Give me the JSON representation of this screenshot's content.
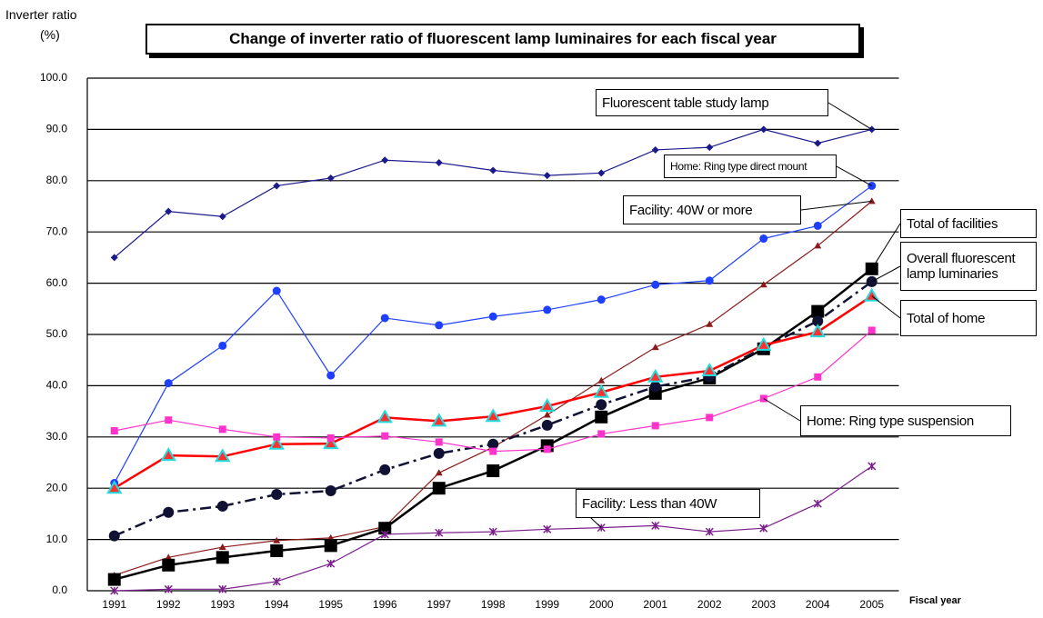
{
  "chart_data": {
    "type": "line",
    "title": "Change of inverter ratio of fluorescent lamp luminaires for each fiscal year",
    "ylabel": [
      "Inverter ratio",
      "(%)"
    ],
    "xlabel": "Fiscal year",
    "categories": [
      "1991",
      "1992",
      "1993",
      "1994",
      "1995",
      "1996",
      "1997",
      "1998",
      "1999",
      "2000",
      "2001",
      "2002",
      "2003",
      "2004",
      "2005"
    ],
    "ylim": [
      0,
      100
    ],
    "yticks": [
      {
        "value": 0,
        "label": "0.0"
      },
      {
        "value": 10,
        "label": "10.0"
      },
      {
        "value": 20,
        "label": "20.0"
      },
      {
        "value": 30,
        "label": "30.0"
      },
      {
        "value": 40,
        "label": "40.0"
      },
      {
        "value": 50,
        "label": "50.0"
      },
      {
        "value": 60,
        "label": "60.0"
      },
      {
        "value": 70,
        "label": "70.0"
      },
      {
        "value": 80,
        "label": "80.0"
      },
      {
        "value": 90,
        "label": "90.0"
      },
      {
        "value": 100,
        "label": "100.0"
      }
    ],
    "grid": true,
    "series": [
      {
        "name": "Fluorescent table study lamp",
        "color": "#1a1a8c",
        "marker": "diamond",
        "values": [
          65,
          74,
          73,
          79,
          80.5,
          84,
          83.5,
          82,
          81,
          81.5,
          86,
          86.5,
          90,
          87.3,
          90
        ]
      },
      {
        "name": "Home: Ring type direct mount",
        "color": "#1f3fff",
        "marker": "circle",
        "values": [
          21,
          40.5,
          47.8,
          58.5,
          42,
          53.2,
          51.8,
          53.5,
          54.8,
          56.8,
          59.7,
          60.5,
          68.7,
          71.2,
          79
        ]
      },
      {
        "name": "Facility: 40W or more",
        "color": "#8b1a1a",
        "marker": "triangle",
        "values": [
          3,
          6.5,
          8.5,
          9.8,
          10.3,
          12.5,
          23,
          28,
          34.3,
          41,
          47.5,
          52,
          59.7,
          67.3,
          76
        ]
      },
      {
        "name": "Total of facilities",
        "color": "#000000",
        "marker": "square",
        "values": [
          2.2,
          5,
          6.5,
          7.8,
          8.8,
          12.2,
          20,
          23.4,
          28.3,
          33.9,
          38.5,
          41.5,
          47.2,
          54.5,
          62.8
        ]
      },
      {
        "name": "Overall fluorescent lamp luminaries",
        "color": "#111133",
        "marker": "bigcircle",
        "dash": true,
        "values": [
          10.7,
          15.3,
          16.5,
          18.8,
          19.5,
          23.6,
          26.8,
          28.6,
          32.3,
          36.3,
          39.8,
          41.8,
          47.5,
          52.6,
          60.3
        ]
      },
      {
        "name": "Total of home",
        "color": "#ff0000",
        "marker": "cyantriangle",
        "values": [
          20,
          26.4,
          26.2,
          28.6,
          28.7,
          33.8,
          33.1,
          34,
          36,
          38.7,
          41.7,
          42.9,
          47.9,
          50.5,
          57.5
        ]
      },
      {
        "name": "Home: Ring type suspension",
        "color": "#ff33cc",
        "marker": "square",
        "values": [
          31.2,
          33.3,
          31.5,
          30,
          29.8,
          30.2,
          29,
          27.2,
          27.6,
          30.6,
          32.2,
          33.8,
          37.5,
          41.7,
          50.8
        ]
      },
      {
        "name": "Facility: Less than 40W",
        "color": "#7b1f8c",
        "marker": "x",
        "values": [
          0,
          0.3,
          0.3,
          1.8,
          5.3,
          11,
          11.3,
          11.5,
          12,
          12.3,
          12.7,
          11.5,
          12.2,
          17,
          24.3
        ]
      }
    ]
  }
}
